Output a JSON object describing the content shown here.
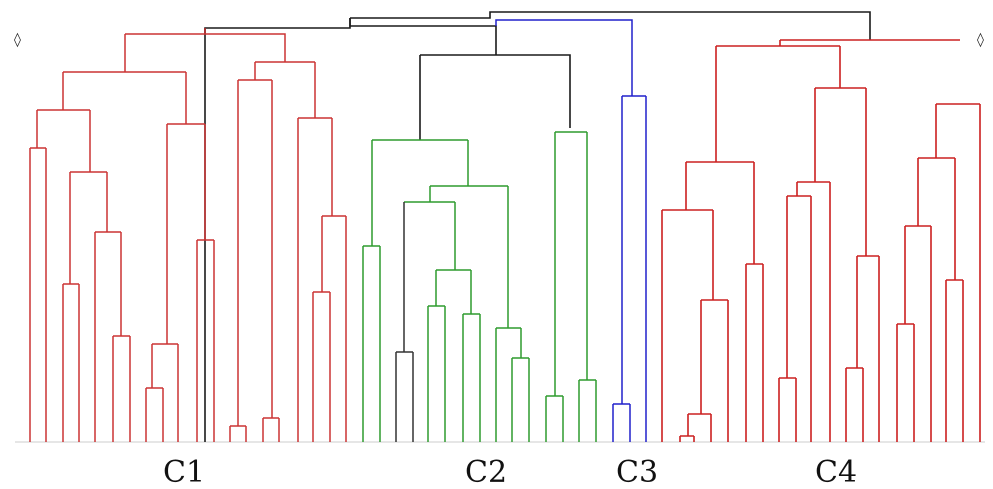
{
  "figure": {
    "cluster_labels": [
      "C1",
      "C2",
      "C3",
      "C4"
    ],
    "colors": {
      "C1": "#cc3333",
      "C2": "#2e9b2e",
      "C3": "#2020cc",
      "C4": "#cc2020",
      "link": "#1a1a1a",
      "baseline": "#cccccc"
    }
  }
}
